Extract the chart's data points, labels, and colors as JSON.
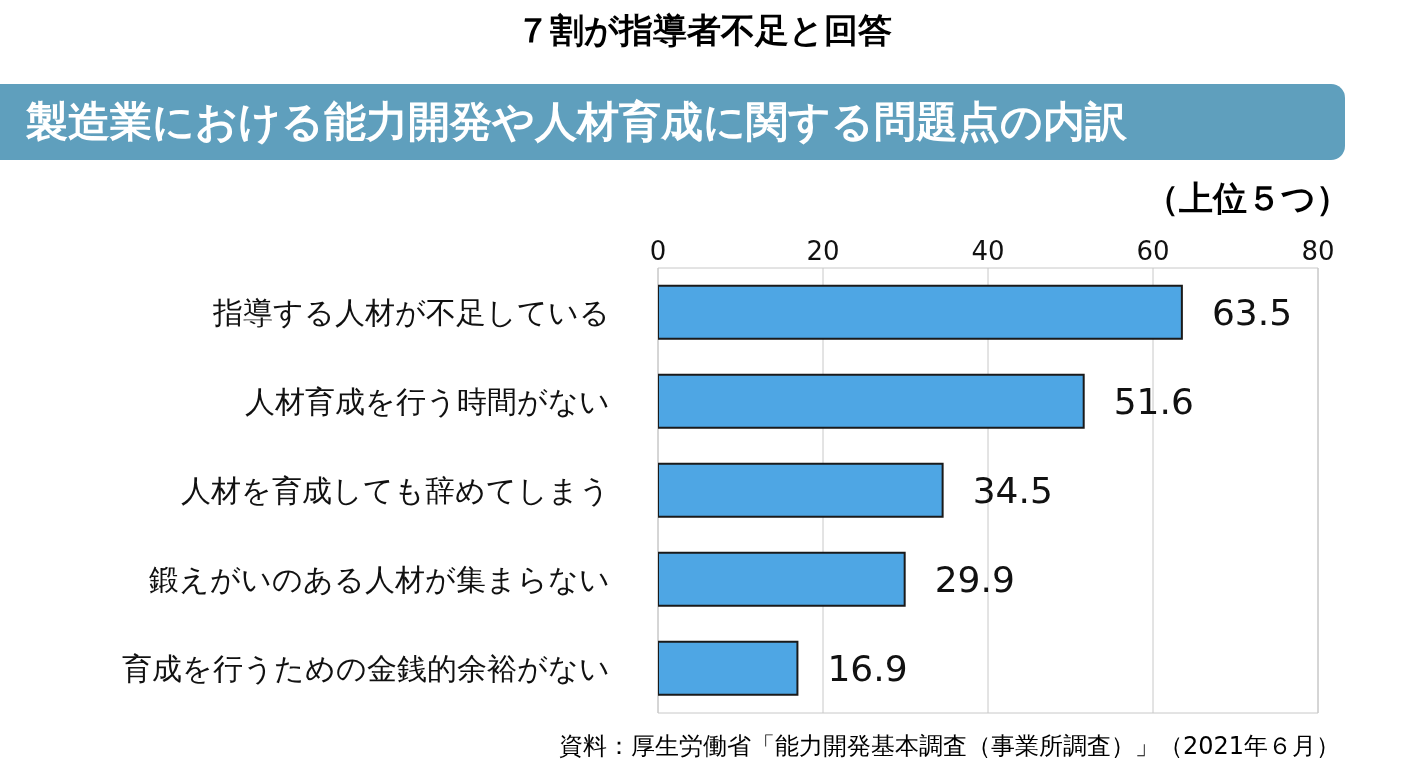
{
  "chart_data": {
    "type": "bar",
    "orientation": "horizontal",
    "title": "７割が指導者不足と回答",
    "subtitle": "製造業における能力開発や人材育成に関する問題点の内訳",
    "categories": [
      "指導する人材が不足している",
      "人材育成を行う時間がない",
      "人材を育成しても辞めてしまう",
      "鍛えがいのある人材が集まらない",
      "育成を行うための金銭的余裕がない"
    ],
    "values": [
      63.5,
      51.6,
      34.5,
      29.9,
      16.9
    ],
    "color": "#4ea6e4",
    "xlim": [
      0,
      80
    ],
    "xticks": [
      0,
      20,
      40,
      60,
      80
    ],
    "grid": "x",
    "data_labels": true,
    "annotations": [
      "（上位５つ）",
      "資料：厚生労働省「能力開発基本調査（事業所調査）」（2021年６月）"
    ]
  }
}
